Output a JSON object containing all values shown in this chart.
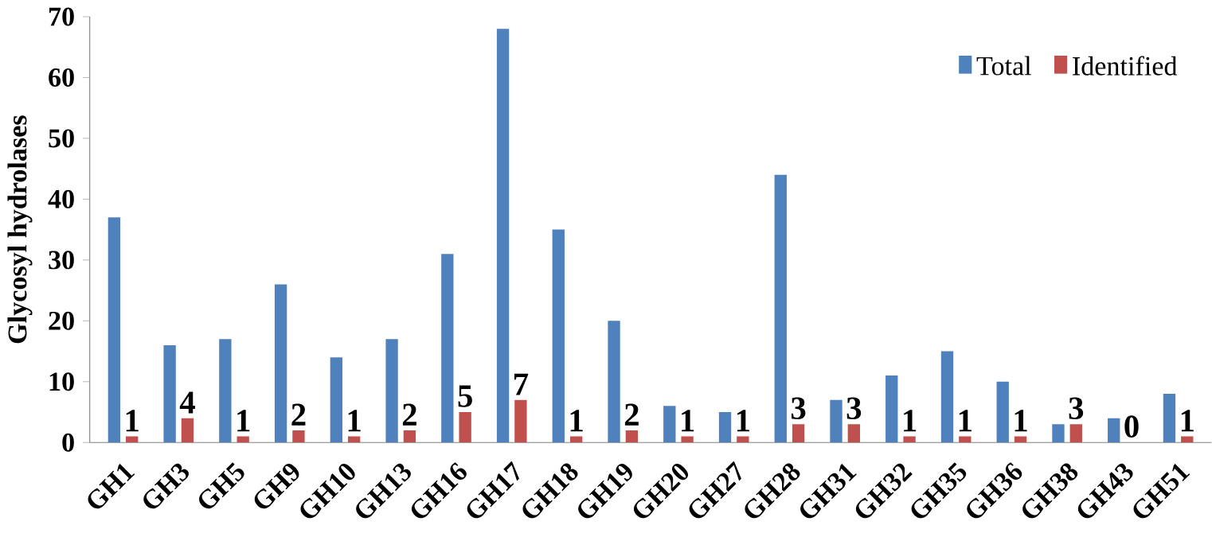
{
  "chart_data": {
    "type": "bar",
    "ylabel": "Glycosyl hydrolases",
    "categories": [
      "GH1",
      "GH3",
      "GH5",
      "GH9",
      "GH10",
      "GH13",
      "GH16",
      "GH17",
      "GH18",
      "GH19",
      "GH20",
      "GH27",
      "GH28",
      "GH31",
      "GH32",
      "GH35",
      "GH36",
      "GH38",
      "GH43",
      "GH51"
    ],
    "series": [
      {
        "name": "Total",
        "color": "#4f81bd",
        "values": [
          37,
          16,
          17,
          26,
          14,
          17,
          31,
          68,
          35,
          20,
          6,
          5,
          44,
          7,
          11,
          15,
          10,
          3,
          4,
          8
        ]
      },
      {
        "name": "Identified",
        "color": "#c0504d",
        "values": [
          1,
          4,
          1,
          2,
          1,
          2,
          5,
          7,
          1,
          2,
          1,
          1,
          3,
          3,
          1,
          1,
          1,
          3,
          0,
          1
        ],
        "value_labels": [
          "1",
          "4",
          "1",
          "2",
          "1",
          "2",
          "5",
          "7",
          "1",
          "2",
          "1",
          "1",
          "3",
          "3",
          "1",
          "1",
          "1",
          "3",
          "0",
          "1"
        ]
      }
    ],
    "ylim": [
      0,
      70
    ],
    "yticks": [
      0,
      10,
      20,
      30,
      40,
      50,
      60,
      70
    ],
    "grid": false,
    "legend": "top right"
  }
}
